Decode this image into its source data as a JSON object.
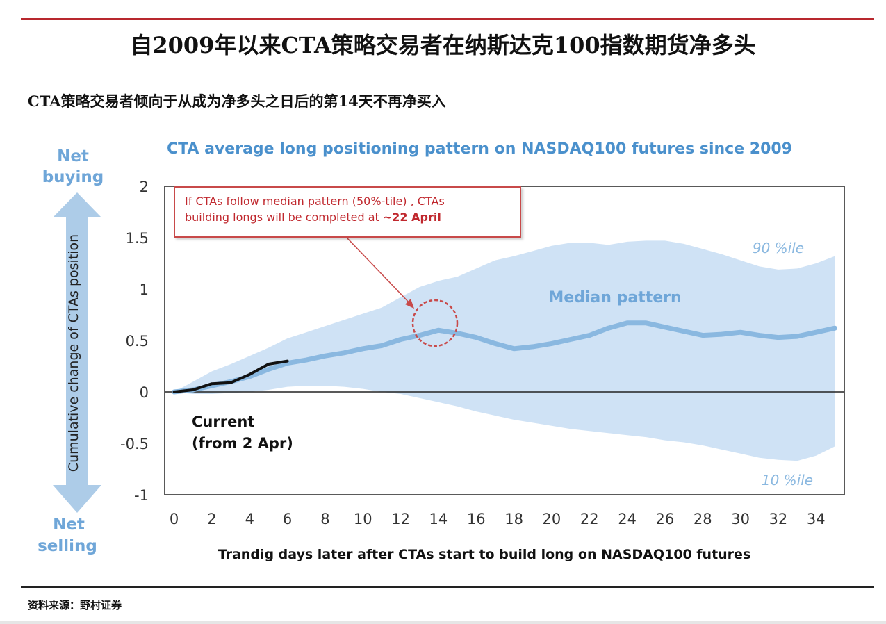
{
  "page": {
    "main_title": "自2009年以来CTA策略交易者在纳斯达克100指数期货净多头",
    "subtitle": "CTA策略交易者倾向于从成为净多头之日后的第14天不再净买入",
    "source": "资料来源：野村证券"
  },
  "chart_data": {
    "type": "area",
    "title": "CTA average long positioning pattern on NASDAQ100 futures since 2009",
    "xlabel": "Trandig days later after CTAs start to build long on NASDAQ100 futures",
    "ylabel": "Cumulative change of CTAs position",
    "xlim": [
      -0.5,
      35.5
    ],
    "ylim": [
      -1,
      2
    ],
    "x_ticks": [
      0,
      2,
      4,
      6,
      8,
      10,
      12,
      14,
      16,
      18,
      20,
      22,
      24,
      26,
      28,
      30,
      32,
      34
    ],
    "y_ticks": [
      -1,
      -0.5,
      0,
      0.5,
      1,
      1.5,
      2
    ],
    "y_tick_labels": [
      "-1",
      "-0.5",
      "0",
      "0.5",
      "1",
      "1.5",
      "2"
    ],
    "grid": false,
    "colors": {
      "band": "#cfe2f5",
      "median": "#8ab8e0",
      "current": "#111111",
      "title": "#4a90cc",
      "callout": "#c0282e",
      "arrow": "#9fc3e4"
    },
    "band_upper": {
      "x": [
        0,
        1,
        2,
        3,
        4,
        5,
        6,
        7,
        8,
        9,
        10,
        11,
        12,
        13,
        14,
        15,
        16,
        17,
        18,
        19,
        20,
        21,
        22,
        23,
        24,
        25,
        26,
        27,
        28,
        29,
        30,
        31,
        32,
        33,
        34,
        35
      ],
      "values": [
        0.0,
        0.1,
        0.2,
        0.27,
        0.35,
        0.43,
        0.52,
        0.58,
        0.64,
        0.7,
        0.76,
        0.82,
        0.92,
        1.02,
        1.08,
        1.12,
        1.2,
        1.28,
        1.32,
        1.37,
        1.42,
        1.45,
        1.45,
        1.43,
        1.46,
        1.47,
        1.47,
        1.44,
        1.39,
        1.34,
        1.28,
        1.22,
        1.19,
        1.2,
        1.25,
        1.32
      ]
    },
    "band_lower": {
      "x": [
        0,
        1,
        2,
        3,
        4,
        5,
        6,
        7,
        8,
        9,
        10,
        11,
        12,
        13,
        14,
        15,
        16,
        17,
        18,
        19,
        20,
        21,
        22,
        23,
        24,
        25,
        26,
        27,
        28,
        29,
        30,
        31,
        32,
        33,
        34,
        35
      ],
      "values": [
        0.0,
        -0.02,
        -0.02,
        -0.01,
        0.0,
        0.02,
        0.05,
        0.06,
        0.06,
        0.05,
        0.03,
        0.0,
        -0.02,
        -0.06,
        -0.1,
        -0.14,
        -0.19,
        -0.23,
        -0.27,
        -0.3,
        -0.33,
        -0.36,
        -0.38,
        -0.4,
        -0.42,
        -0.44,
        -0.47,
        -0.49,
        -0.52,
        -0.56,
        -0.6,
        -0.64,
        -0.66,
        -0.67,
        -0.62,
        -0.53
      ]
    },
    "series": [
      {
        "name": "Median pattern",
        "x": [
          0,
          1,
          2,
          3,
          4,
          5,
          6,
          7,
          8,
          9,
          10,
          11,
          12,
          13,
          14,
          15,
          16,
          17,
          18,
          19,
          20,
          21,
          22,
          23,
          24,
          25,
          26,
          27,
          28,
          29,
          30,
          31,
          32,
          33,
          34,
          35
        ],
        "values": [
          0.0,
          0.02,
          0.06,
          0.1,
          0.15,
          0.22,
          0.28,
          0.31,
          0.35,
          0.38,
          0.42,
          0.45,
          0.51,
          0.55,
          0.6,
          0.57,
          0.53,
          0.47,
          0.42,
          0.44,
          0.47,
          0.51,
          0.55,
          0.62,
          0.67,
          0.67,
          0.63,
          0.59,
          0.55,
          0.56,
          0.58,
          0.55,
          0.53,
          0.54,
          0.58,
          0.62
        ]
      },
      {
        "name": "Current (from 2 Apr)",
        "x": [
          0,
          1,
          2,
          3,
          4,
          5,
          6
        ],
        "values": [
          0.0,
          0.02,
          0.08,
          0.09,
          0.17,
          0.27,
          0.3
        ]
      }
    ],
    "annotations": {
      "upper_label": "90 %ile",
      "lower_label": "10 %ile",
      "median_label": "Median pattern",
      "current_line1": "Current",
      "current_line2": "(from 2 Apr)",
      "callout_line1": "If CTAs follow median pattern (50%-tile) , CTAs",
      "callout_line2_prefix": "building longs will be completed  at ",
      "callout_line2_bold": "~22 April",
      "net_buying_1": "Net",
      "net_buying_2": "buying",
      "net_selling_1": "Net",
      "net_selling_2": "selling"
    }
  }
}
